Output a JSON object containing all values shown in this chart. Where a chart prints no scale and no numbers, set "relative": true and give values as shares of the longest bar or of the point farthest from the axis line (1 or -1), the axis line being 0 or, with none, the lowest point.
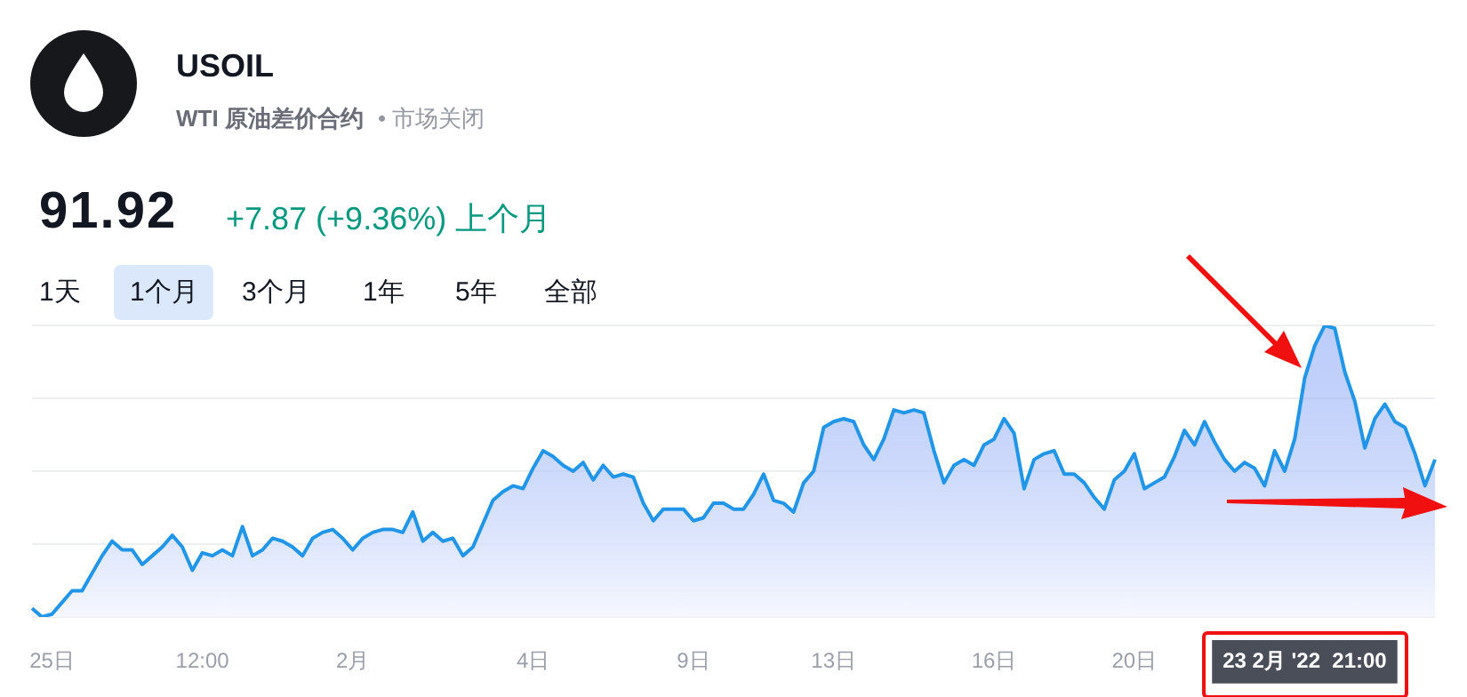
{
  "chart_data": {
    "type": "area",
    "relative": true,
    "title": "USOIL",
    "subtitle": "WTI 原油差价合约",
    "annotations": [
      "• 市场关闭",
      "91.92",
      "+7.87 (+9.36%) 上个月",
      "1天",
      "1个月",
      "3个月",
      "1年",
      "5年",
      "全部"
    ],
    "categories": [
      null,
      null,
      "25日",
      null,
      null,
      null,
      null,
      null,
      null,
      null,
      null,
      null,
      null,
      null,
      null,
      null,
      null,
      "12:00",
      null,
      null,
      null,
      null,
      null,
      null,
      null,
      null,
      null,
      null,
      null,
      null,
      null,
      null,
      "2月",
      null,
      null,
      null,
      null,
      null,
      null,
      null,
      null,
      null,
      null,
      null,
      null,
      null,
      null,
      null,
      null,
      null,
      "4日",
      null,
      null,
      null,
      null,
      null,
      null,
      null,
      null,
      null,
      null,
      null,
      null,
      null,
      null,
      null,
      "9日",
      null,
      null,
      null,
      null,
      null,
      null,
      null,
      null,
      null,
      null,
      null,
      null,
      null,
      "13日",
      null,
      null,
      null,
      null,
      null,
      null,
      null,
      null,
      null,
      null,
      null,
      null,
      null,
      null,
      null,
      "16日",
      null,
      null,
      null,
      null,
      null,
      null,
      null,
      null,
      null,
      null,
      null,
      null,
      null,
      "20日",
      null,
      null,
      null,
      null,
      null,
      null,
      null,
      null,
      null,
      null,
      null,
      null,
      null,
      null,
      null,
      null,
      "23 2月 '22  21:00",
      null,
      null,
      null,
      null,
      null,
      null,
      null,
      null,
      null,
      null,
      null,
      null,
      null
    ],
    "series": [
      {
        "color": "#2196e8",
        "values": [
          0.03,
          0,
          0.01,
          0.05,
          0.09,
          0.09,
          0.15,
          0.21,
          0.26,
          0.23,
          0.23,
          0.18,
          0.21,
          0.24,
          0.28,
          0.24,
          0.16,
          0.22,
          0.21,
          0.23,
          0.21,
          0.31,
          0.21,
          0.23,
          0.27,
          0.26,
          0.24,
          0.21,
          0.27,
          0.29,
          0.3,
          0.27,
          0.23,
          0.27,
          0.29,
          0.3,
          0.3,
          0.29,
          0.36,
          0.26,
          0.29,
          0.26,
          0.27,
          0.21,
          0.24,
          0.32,
          0.4,
          0.43,
          0.45,
          0.44,
          0.51,
          0.57,
          0.55,
          0.52,
          0.5,
          0.53,
          0.47,
          0.52,
          0.48,
          0.49,
          0.48,
          0.39,
          0.33,
          0.37,
          0.37,
          0.37,
          0.33,
          0.34,
          0.39,
          0.39,
          0.37,
          0.37,
          0.42,
          0.49,
          0.4,
          0.39,
          0.36,
          0.46,
          0.5,
          0.65,
          0.67,
          0.68,
          0.67,
          0.59,
          0.54,
          0.61,
          0.71,
          0.7,
          0.71,
          0.7,
          0.57,
          0.46,
          0.52,
          0.54,
          0.52,
          0.59,
          0.61,
          0.68,
          0.63,
          0.44,
          0.54,
          0.56,
          0.57,
          0.49,
          0.49,
          0.46,
          0.41,
          0.37,
          0.47,
          0.5,
          0.56,
          0.44,
          0.46,
          0.48,
          0.55,
          0.64,
          0.59,
          0.67,
          0.6,
          0.54,
          0.5,
          0.53,
          0.51,
          0.45,
          0.57,
          0.5,
          0.61,
          0.82,
          0.93,
          1,
          0.99,
          0.84,
          0.74,
          0.58,
          0.68,
          0.73,
          0.67,
          0.65,
          0.56,
          0.45,
          0.54
        ]
      }
    ],
    "grid": "y",
    "legend": false
  }
}
